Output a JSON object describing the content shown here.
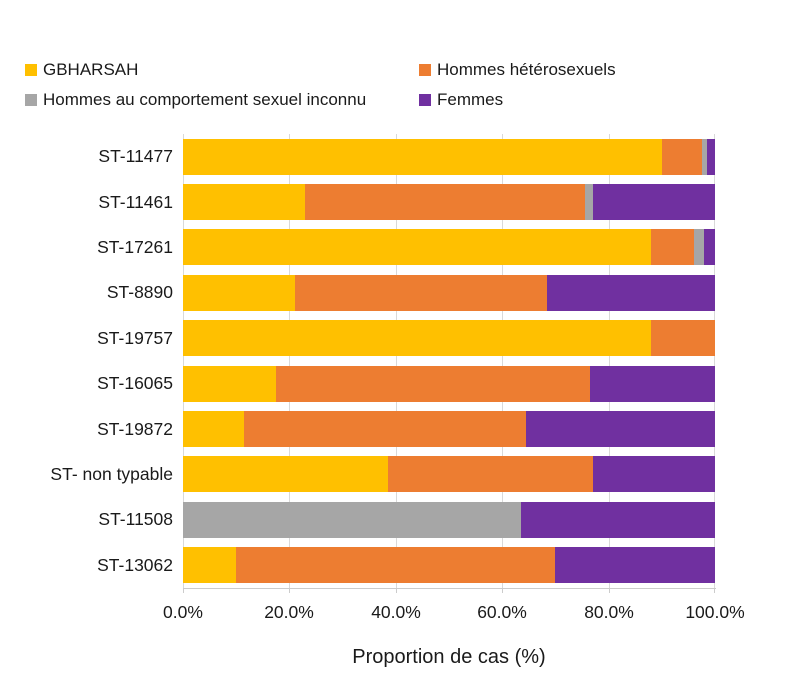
{
  "chart_data": {
    "type": "bar",
    "orientation": "horizontal",
    "stacked": true,
    "title": "",
    "xlabel": "Proportion de cas (%)",
    "ylabel": "",
    "xlim": [
      0,
      100
    ],
    "x_ticks": [
      "0.0%",
      "20.0%",
      "40.0%",
      "60.0%",
      "80.0%",
      "100.0%"
    ],
    "x_tick_values": [
      0,
      20,
      40,
      60,
      80,
      100
    ],
    "grid": true,
    "legend_position": "top-left, two columns",
    "categories": [
      "ST-11477",
      "ST-11461",
      "ST-17261",
      "ST-8890",
      "ST-19757",
      "ST-16065",
      "ST-19872",
      "ST- non typable",
      "ST-11508",
      "ST-13062"
    ],
    "series": [
      {
        "name": "GBHARSAH",
        "color": "#FFC000",
        "values": [
          90,
          23,
          88,
          21,
          88,
          17.5,
          11.5,
          38.5,
          0,
          10
        ]
      },
      {
        "name": "Hommes hétérosexuels",
        "color": "#ED7D31",
        "values": [
          7.5,
          52.5,
          8,
          47.5,
          12,
          59,
          53,
          38.5,
          0,
          60
        ]
      },
      {
        "name": "Hommes au comportement sexuel inconnu",
        "color": "#A6A6A6",
        "values": [
          1,
          1.5,
          2,
          0,
          0,
          0,
          0,
          0,
          63.5,
          0
        ]
      },
      {
        "name": "Femmes",
        "color": "#7030A0",
        "values": [
          1.5,
          23,
          2,
          31.5,
          0,
          23.5,
          35.5,
          23,
          36.5,
          30
        ]
      }
    ]
  },
  "colors": {
    "gbharsah": "#FFC000",
    "hommes_heterosexuels": "#ED7D31",
    "comportement_inconnu": "#A6A6A6",
    "femmes": "#7030A0",
    "gridline": "#d9d9d9",
    "axis_line": "#cccccc",
    "text": "#1a1a1a",
    "background": "#ffffff"
  }
}
